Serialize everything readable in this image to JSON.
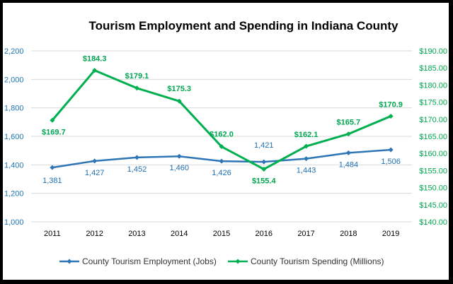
{
  "chart_data": {
    "type": "line",
    "title": "Tourism Employment and Spending in Indiana County",
    "categories": [
      "2011",
      "2012",
      "2013",
      "2014",
      "2015",
      "2016",
      "2017",
      "2018",
      "2019"
    ],
    "y_left": {
      "ylim": [
        1000,
        2200
      ],
      "ticks": [
        "1,000",
        "1,200",
        "1,400",
        "1,600",
        "1,800",
        "2,000",
        "2,200"
      ],
      "tick_values": [
        1000,
        1200,
        1400,
        1600,
        1800,
        2000,
        2200
      ]
    },
    "y_right": {
      "ylim": [
        140,
        190
      ],
      "ticks": [
        "$140.00",
        "$145.00",
        "$150.00",
        "$155.00",
        "$160.00",
        "$165.00",
        "$170.00",
        "$175.00",
        "$180.00",
        "$185.00",
        "$190.00"
      ],
      "tick_values": [
        140,
        145,
        150,
        155,
        160,
        165,
        170,
        175,
        180,
        185,
        190
      ]
    },
    "series": [
      {
        "name": "County Tourism Employment (Jobs)",
        "axis": "left",
        "color": "#2e75b6",
        "values": [
          1381,
          1427,
          1452,
          1460,
          1426,
          1421,
          1443,
          1484,
          1506
        ],
        "labels": [
          "1,381",
          "1,427",
          "1,452",
          "1,460",
          "1,426",
          "1,421",
          "1,443",
          "1,484",
          "1,506"
        ]
      },
      {
        "name": "County Tourism Spending (Millions)",
        "axis": "right",
        "color": "#00b050",
        "values": [
          169.7,
          184.3,
          179.1,
          175.3,
          162.0,
          155.4,
          162.1,
          165.7,
          170.9
        ],
        "labels": [
          "$169.7",
          "$184.3",
          "$179.1",
          "$175.3",
          "$162.0",
          "$155.4",
          "$162.1",
          "$165.7",
          "$170.9"
        ]
      }
    ],
    "grid": true,
    "legend_position": "bottom"
  }
}
